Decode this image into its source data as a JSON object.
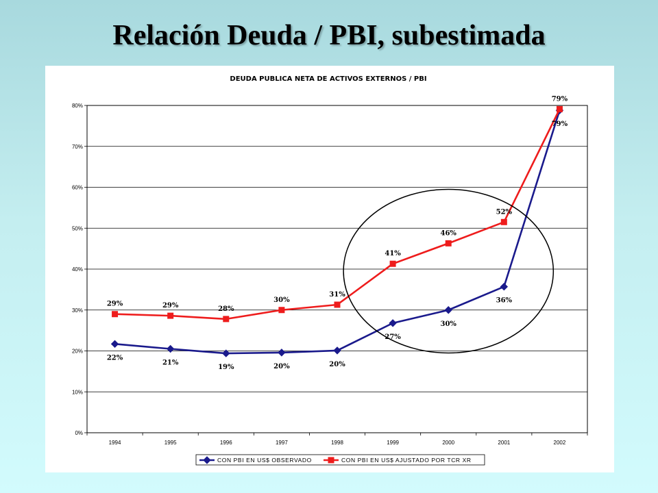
{
  "slide": {
    "title": "Relación Deuda / PBI, subestimada"
  },
  "chart_data": {
    "type": "line",
    "title": "DEUDA PUBLICA NETA DE ACTIVOS EXTERNOS / PBI",
    "categories": [
      "1994",
      "1995",
      "1996",
      "1997",
      "1998",
      "1999",
      "2000",
      "2001",
      "2002"
    ],
    "ylim": [
      0,
      0.8
    ],
    "yticks": [
      0,
      0.1,
      0.2,
      0.3,
      0.4,
      0.5,
      0.6,
      0.7,
      0.8
    ],
    "ytick_labels": [
      "0%",
      "10%",
      "20%",
      "30%",
      "40%",
      "50%",
      "60%",
      "70%",
      "80%"
    ],
    "grid": true,
    "legend_position": "bottom",
    "series": [
      {
        "name": "CON PBI EN US$ OBSERVADO",
        "color": "#1a1a8c",
        "marker": "diamond",
        "values": [
          0.217,
          0.205,
          0.194,
          0.196,
          0.201,
          0.268,
          0.3,
          0.357,
          0.788
        ],
        "labels": [
          "22%",
          "21%",
          "19%",
          "20%",
          "20%",
          "27%",
          "30%",
          "36%",
          "79%"
        ]
      },
      {
        "name": "CON PBI EN US$ AJUSTADO POR TCR XR",
        "color": "#ee1c1c",
        "marker": "square",
        "values": [
          0.29,
          0.286,
          0.278,
          0.3,
          0.313,
          0.413,
          0.463,
          0.515,
          0.791
        ],
        "labels": [
          "29%",
          "29%",
          "28%",
          "30%",
          "31%",
          "41%",
          "46%",
          "52%",
          "79%"
        ]
      }
    ],
    "annotations": [
      {
        "type": "ellipse",
        "around_categories": [
          "1999",
          "2000",
          "2001"
        ]
      }
    ]
  }
}
